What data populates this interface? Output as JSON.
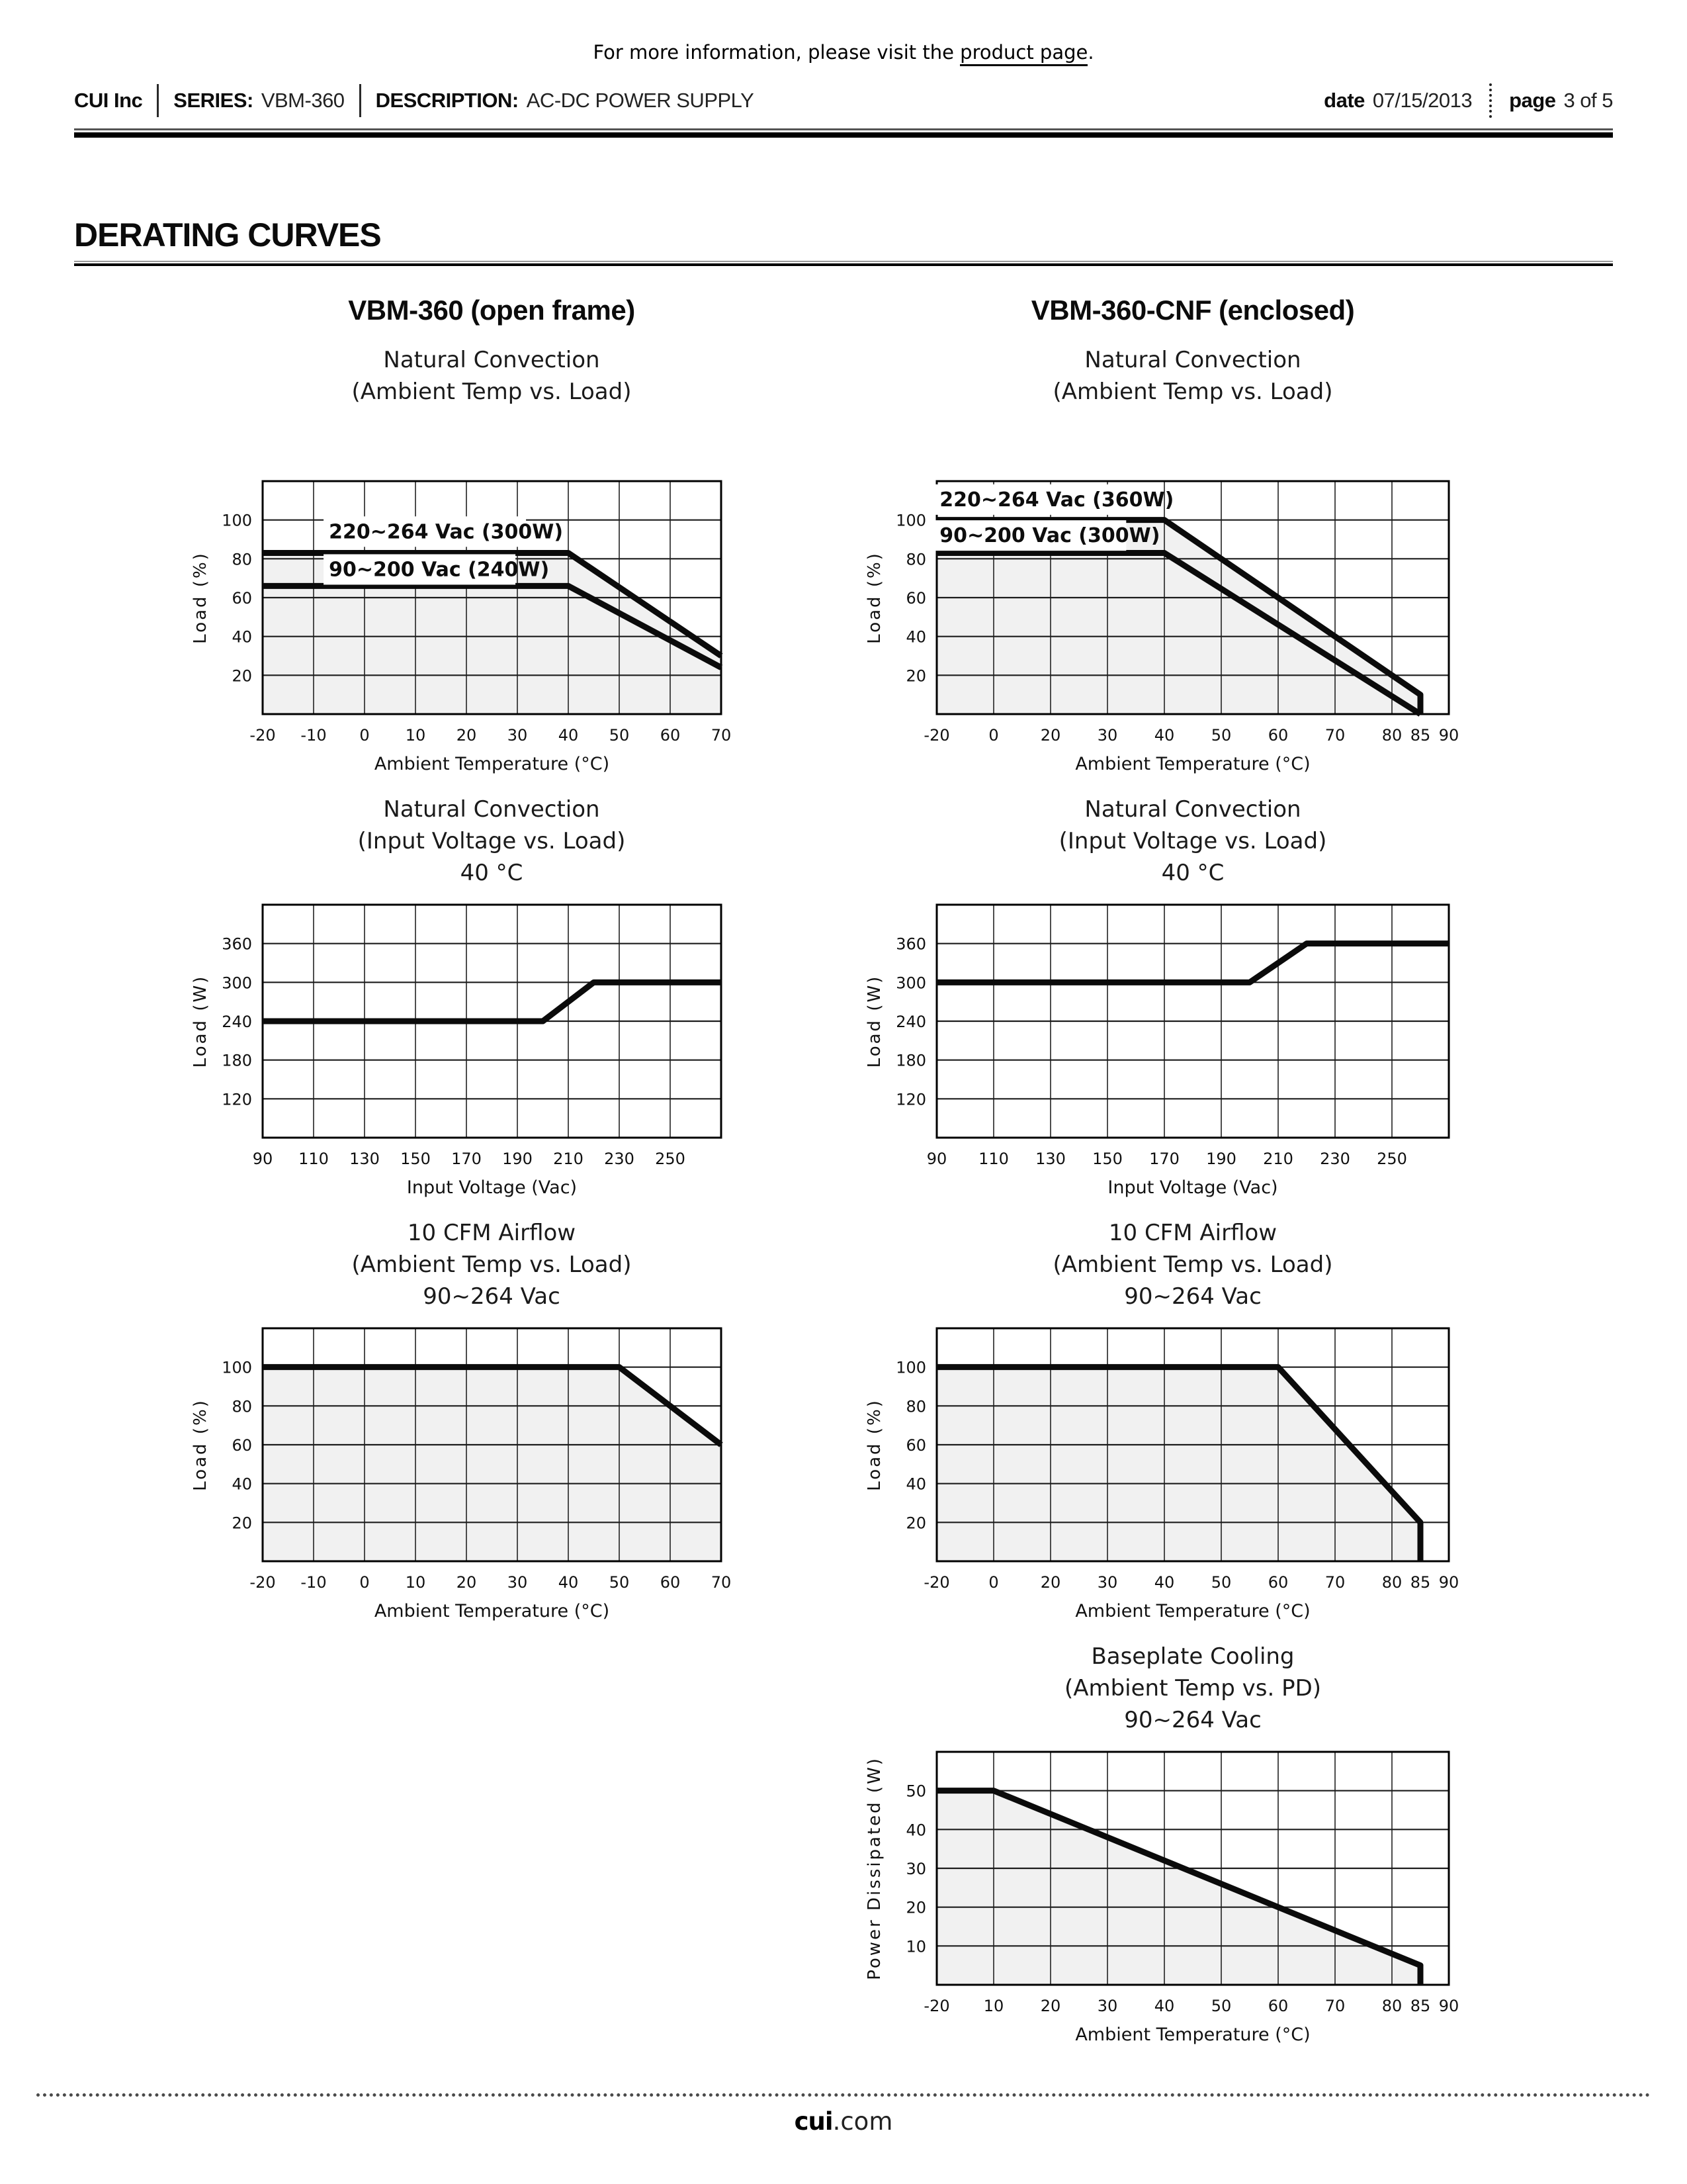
{
  "header": {
    "note_prefix": "For more information, please visit the ",
    "note_link": "product page",
    "note_suffix": ".",
    "company": "CUI Inc",
    "series_label": "SERIES:",
    "series_value": "VBM-360",
    "description_label": "DESCRIPTION:",
    "description_value": "AC-DC POWER SUPPLY",
    "date_label": "date",
    "date_value": "07/15/2013",
    "page_label": "page",
    "page_value": "3 of 5"
  },
  "section_title": "DERATING CURVES",
  "columns": [
    {
      "title": "VBM-360 (open frame)"
    },
    {
      "title": "VBM-360-CNF (enclosed)"
    }
  ],
  "footer": {
    "brand_bold": "cui",
    "brand_rest": ".com"
  },
  "style": {
    "curve_color": "#0b0b0b",
    "grid_color": "#2e2e2e",
    "border_color": "#000000",
    "fill_color": "#f1f1f1",
    "text_color": "#111111"
  },
  "chart_data": [
    {
      "type": "line",
      "panel": "open-frame",
      "title_lines": [
        "Natural Convection",
        "(Ambient Temp vs. Load)"
      ],
      "xlabel": "Ambient Temperature (°C)",
      "ylabel": "Load (%)",
      "x_ticks": [
        -20,
        -10,
        0,
        10,
        20,
        30,
        40,
        50,
        60,
        70
      ],
      "x_extra_tick_labels": [],
      "y_axis": {
        "min": 0,
        "max": 120,
        "gridlines": [
          20,
          40,
          60,
          80,
          100
        ],
        "tick_labels": [
          20,
          40,
          60,
          80,
          100
        ]
      },
      "fill_under_first_series": true,
      "series": [
        {
          "name": "220~264 Vac (300W)",
          "points": [
            [
              -20,
              83
            ],
            [
              40,
              83
            ],
            [
              70,
              30
            ]
          ],
          "label_at": [
            -7,
            94
          ]
        },
        {
          "name": "90~200 Vac (240W)",
          "points": [
            [
              -20,
              66
            ],
            [
              40,
              66
            ],
            [
              70,
              24
            ]
          ],
          "label_at": [
            -7,
            74.5
          ]
        }
      ]
    },
    {
      "type": "line",
      "panel": "enclosed",
      "title_lines": [
        "Natural Convection",
        "(Ambient Temp vs. Load)"
      ],
      "xlabel": "Ambient Temperature (°C)",
      "ylabel": "Load (%)",
      "x_ticks": [
        -20,
        0,
        20,
        30,
        40,
        50,
        60,
        70,
        80,
        90
      ],
      "x_extra_tick_labels": [
        85
      ],
      "y_axis": {
        "min": 0,
        "max": 120,
        "gridlines": [
          20,
          40,
          60,
          80,
          100
        ],
        "tick_labels": [
          20,
          40,
          60,
          80,
          100
        ]
      },
      "fill_under_first_series": true,
      "series": [
        {
          "name": "220~264 Vac (360W)",
          "points": [
            [
              -20,
              100
            ],
            [
              40,
              100
            ],
            [
              85,
              10
            ],
            [
              85,
              0
            ]
          ],
          "label_at": [
            -19,
            110.5
          ]
        },
        {
          "name": "90~200 Vac (300W)",
          "points": [
            [
              -20,
              83
            ],
            [
              40,
              83
            ],
            [
              85,
              0
            ]
          ],
          "label_at": [
            -19,
            92
          ]
        }
      ]
    },
    {
      "type": "line",
      "panel": "open-frame",
      "title_lines": [
        "Natural Convection",
        "(Input Voltage vs. Load)",
        "40 °C"
      ],
      "xlabel": "Input Voltage (Vac)",
      "ylabel": "Load (W)",
      "x_ticks": [
        90,
        110,
        130,
        150,
        170,
        190,
        210,
        230,
        250
      ],
      "x_extra_tick_labels": [],
      "x_max": 270,
      "y_axis": {
        "min": 60,
        "max": 420,
        "gridlines": [
          120,
          180,
          240,
          300,
          360
        ],
        "tick_labels": [
          120,
          180,
          240,
          300,
          360
        ]
      },
      "fill_under_first_series": false,
      "series": [
        {
          "points": [
            [
              90,
              240
            ],
            [
              200,
              240
            ],
            [
              220,
              300
            ],
            [
              270,
              300
            ]
          ]
        }
      ]
    },
    {
      "type": "line",
      "panel": "enclosed",
      "title_lines": [
        "Natural Convection",
        "(Input Voltage vs. Load)",
        "40 °C"
      ],
      "xlabel": "Input Voltage (Vac)",
      "ylabel": "Load (W)",
      "x_ticks": [
        90,
        110,
        130,
        150,
        170,
        190,
        210,
        230,
        250
      ],
      "x_extra_tick_labels": [],
      "x_max": 270,
      "y_axis": {
        "min": 60,
        "max": 420,
        "gridlines": [
          120,
          180,
          240,
          300,
          360
        ],
        "tick_labels": [
          120,
          180,
          240,
          300,
          360
        ]
      },
      "fill_under_first_series": false,
      "series": [
        {
          "points": [
            [
              90,
              300
            ],
            [
              200,
              300
            ],
            [
              220,
              360
            ],
            [
              270,
              360
            ]
          ]
        }
      ]
    },
    {
      "type": "line",
      "panel": "open-frame",
      "title_lines": [
        "10 CFM Airflow",
        "(Ambient Temp vs. Load)",
        "90~264 Vac"
      ],
      "xlabel": "Ambient Temperature (°C)",
      "ylabel": "Load (%)",
      "x_ticks": [
        -20,
        -10,
        0,
        10,
        20,
        30,
        40,
        50,
        60,
        70
      ],
      "x_extra_tick_labels": [],
      "y_axis": {
        "min": 0,
        "max": 120,
        "gridlines": [
          20,
          40,
          60,
          80,
          100
        ],
        "tick_labels": [
          20,
          40,
          60,
          80,
          100
        ]
      },
      "fill_under_first_series": true,
      "series": [
        {
          "points": [
            [
              -20,
              100
            ],
            [
              50,
              100
            ],
            [
              70,
              60
            ]
          ]
        }
      ]
    },
    {
      "type": "line",
      "panel": "enclosed",
      "title_lines": [
        "10 CFM Airflow",
        "(Ambient Temp vs. Load)",
        "90~264 Vac"
      ],
      "xlabel": "Ambient Temperature (°C)",
      "ylabel": "Load (%)",
      "x_ticks": [
        -20,
        0,
        20,
        30,
        40,
        50,
        60,
        70,
        80,
        90
      ],
      "x_extra_tick_labels": [
        85
      ],
      "y_axis": {
        "min": 0,
        "max": 120,
        "gridlines": [
          20,
          40,
          60,
          80,
          100
        ],
        "tick_labels": [
          20,
          40,
          60,
          80,
          100
        ]
      },
      "fill_under_first_series": true,
      "series": [
        {
          "points": [
            [
              -20,
              100
            ],
            [
              60,
              100
            ],
            [
              85,
              20
            ],
            [
              85,
              0
            ]
          ]
        }
      ]
    },
    {
      "type": "line",
      "panel": "enclosed",
      "title_lines": [
        "Baseplate Cooling",
        "(Ambient Temp vs. PD)",
        "90~264 Vac"
      ],
      "xlabel": "Ambient Temperature (°C)",
      "ylabel": "Power Dissipated (W)",
      "x_ticks": [
        -20,
        10,
        20,
        30,
        40,
        50,
        60,
        70,
        80,
        90
      ],
      "x_extra_tick_labels": [
        85
      ],
      "y_axis": {
        "min": 0,
        "max": 60,
        "gridlines": [
          10,
          20,
          30,
          40,
          50
        ],
        "tick_labels": [
          10,
          20,
          30,
          40,
          50
        ]
      },
      "fill_under_first_series": true,
      "series": [
        {
          "points": [
            [
              -20,
              50
            ],
            [
              10,
              50
            ],
            [
              85,
              5
            ],
            [
              85,
              0
            ]
          ]
        }
      ]
    }
  ]
}
